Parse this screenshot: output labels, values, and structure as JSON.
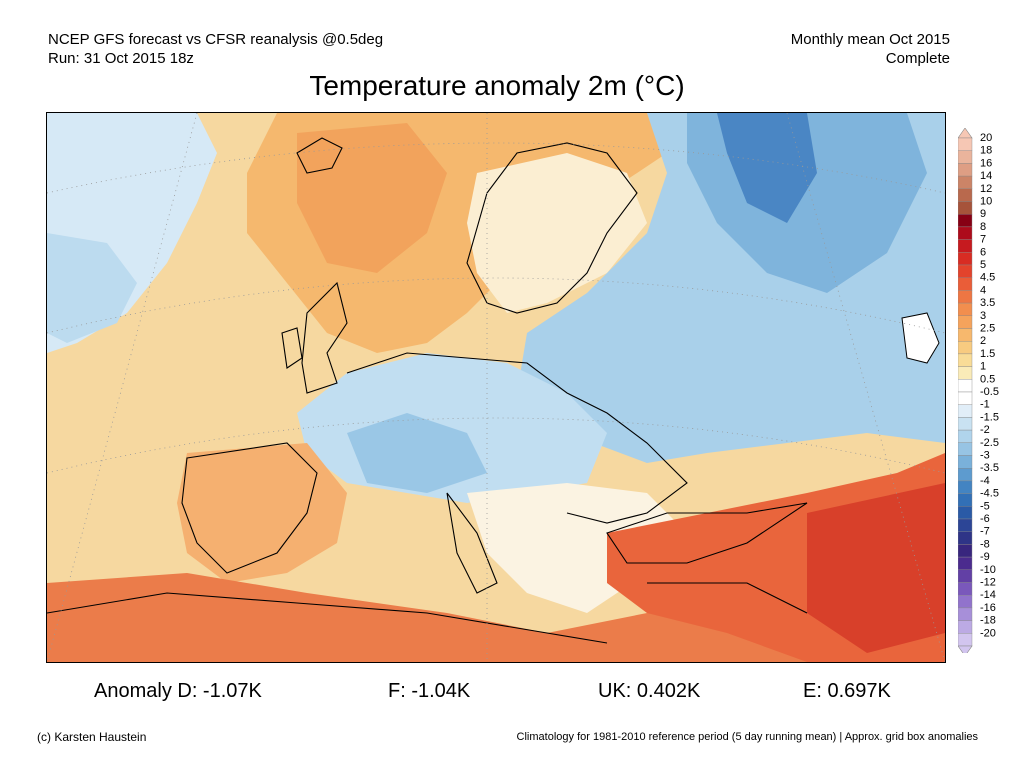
{
  "header": {
    "line1": "NCEP GFS forecast vs CFSR reanalysis @0.5deg",
    "line2": "Run: 31 Oct 2015 18z",
    "right1": "Monthly mean Oct 2015",
    "right2": "Complete"
  },
  "title": "Temperature anomaly 2m (°C)",
  "colorbar": {
    "levels": [
      "20",
      "18",
      "16",
      "14",
      "12",
      "10",
      "9",
      "8",
      "7",
      "6",
      "5",
      "4.5",
      "4",
      "3.5",
      "3",
      "2.5",
      "2",
      "1.5",
      "1",
      "0.5",
      "-0.5",
      "-1",
      "-1.5",
      "-2",
      "-2.5",
      "-3",
      "-3.5",
      "-4",
      "-4.5",
      "-5",
      "-6",
      "-7",
      "-8",
      "-9",
      "-10",
      "-12",
      "-14",
      "-16",
      "-18",
      "-20"
    ],
    "colors": [
      "#f6c7b4",
      "#eab49c",
      "#de9e84",
      "#cc8467",
      "#b9694d",
      "#a6533a",
      "#870014",
      "#ad0b1b",
      "#c61a1f",
      "#d82c23",
      "#e3432c",
      "#ea5d38",
      "#ee7643",
      "#f28e4e",
      "#f5a35c",
      "#f7b86d",
      "#f8cb80",
      "#f9dc97",
      "#faebb8",
      "#ffffff",
      "#ffffff",
      "#e1eef8",
      "#c9e2f2",
      "#b0d4ec",
      "#97c4e4",
      "#7ab1da",
      "#5d9bcf",
      "#4384c2",
      "#3270b6",
      "#2a5aa6",
      "#2c4596",
      "#2e3487",
      "#38267e",
      "#4b2b8e",
      "#6240a5",
      "#7a58bb",
      "#9173cc",
      "#a78fd9",
      "#bcaae4",
      "#d2c5ef"
    ]
  },
  "stats": {
    "d": "Anomaly D: -1.07K",
    "f": "F: -1.04K",
    "uk": "UK: 0.402K",
    "e": "E: 0.697K"
  },
  "footer": {
    "left": "(c) Karsten Haustein",
    "right": "Climatology for 1981-2010 reference period (5 day running mean) | Approx. grid box anomalies"
  }
}
